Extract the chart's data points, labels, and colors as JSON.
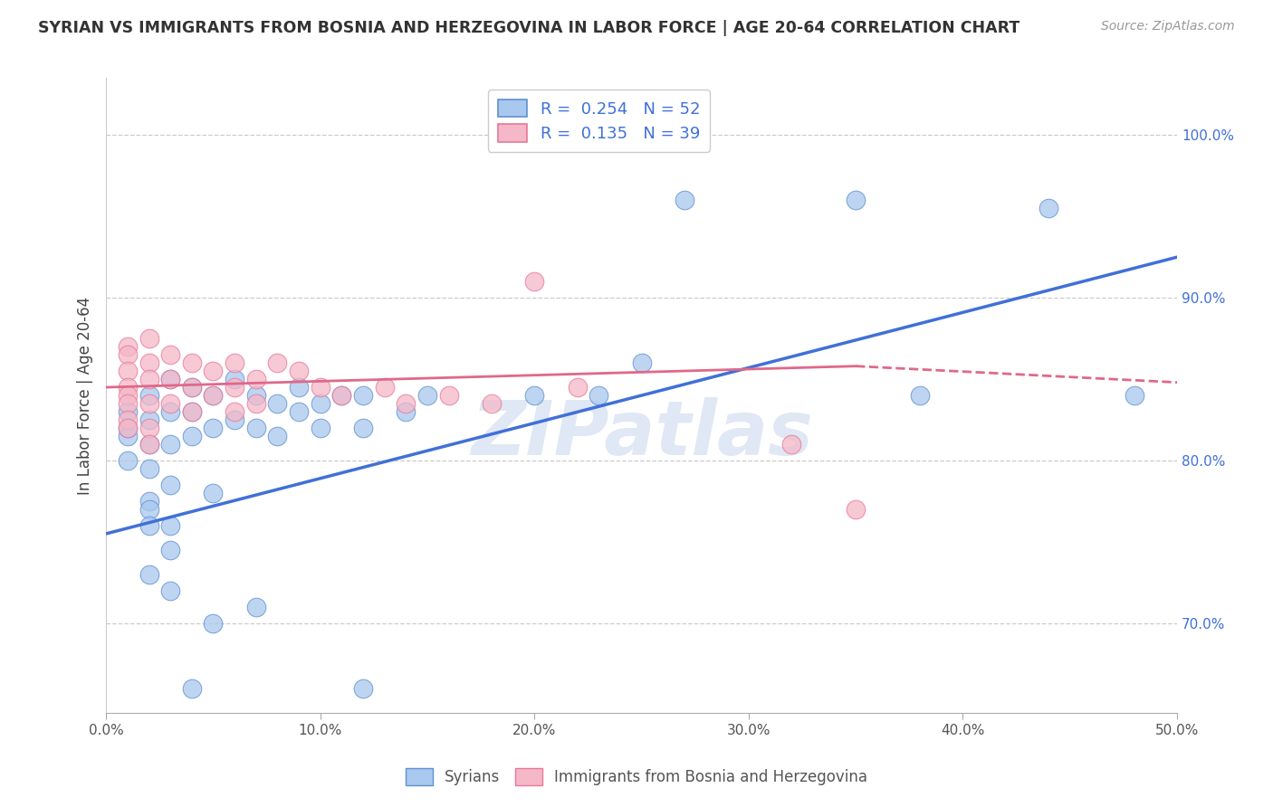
{
  "title": "SYRIAN VS IMMIGRANTS FROM BOSNIA AND HERZEGOVINA IN LABOR FORCE | AGE 20-64 CORRELATION CHART",
  "source": "Source: ZipAtlas.com",
  "ylabel": "In Labor Force | Age 20-64",
  "xlim": [
    0.0,
    0.5
  ],
  "ylim": [
    0.645,
    1.035
  ],
  "yticks": [
    0.7,
    0.8,
    0.9,
    1.0
  ],
  "ytick_labels": [
    "70.0%",
    "80.0%",
    "90.0%",
    "100.0%"
  ],
  "xticks": [
    0.0,
    0.1,
    0.2,
    0.3,
    0.4,
    0.5
  ],
  "xtick_labels": [
    "0.0%",
    "10.0%",
    "20.0%",
    "30.0%",
    "40.0%",
    "50.0%"
  ],
  "blue_R": 0.254,
  "blue_N": 52,
  "pink_R": 0.135,
  "pink_N": 39,
  "blue_fill": "#a8c8ee",
  "pink_fill": "#f4b8c8",
  "blue_edge": "#6090d0",
  "pink_edge": "#e87898",
  "blue_line": "#4070d8",
  "pink_line": "#e06888",
  "watermark": "ZIPatlas",
  "blue_scatter": [
    [
      0.01,
      0.815
    ],
    [
      0.01,
      0.82
    ],
    [
      0.01,
      0.8
    ],
    [
      0.01,
      0.83
    ],
    [
      0.02,
      0.84
    ],
    [
      0.02,
      0.825
    ],
    [
      0.02,
      0.81
    ],
    [
      0.02,
      0.795
    ],
    [
      0.02,
      0.775
    ],
    [
      0.02,
      0.77
    ],
    [
      0.02,
      0.76
    ],
    [
      0.03,
      0.85
    ],
    [
      0.03,
      0.83
    ],
    [
      0.03,
      0.81
    ],
    [
      0.03,
      0.785
    ],
    [
      0.03,
      0.76
    ],
    [
      0.03,
      0.745
    ],
    [
      0.04,
      0.845
    ],
    [
      0.04,
      0.83
    ],
    [
      0.04,
      0.815
    ],
    [
      0.05,
      0.84
    ],
    [
      0.05,
      0.82
    ],
    [
      0.05,
      0.78
    ],
    [
      0.06,
      0.85
    ],
    [
      0.06,
      0.825
    ],
    [
      0.07,
      0.84
    ],
    [
      0.07,
      0.82
    ],
    [
      0.08,
      0.835
    ],
    [
      0.08,
      0.815
    ],
    [
      0.09,
      0.845
    ],
    [
      0.09,
      0.83
    ],
    [
      0.1,
      0.835
    ],
    [
      0.1,
      0.82
    ],
    [
      0.11,
      0.84
    ],
    [
      0.12,
      0.84
    ],
    [
      0.12,
      0.82
    ],
    [
      0.14,
      0.83
    ],
    [
      0.15,
      0.84
    ],
    [
      0.2,
      0.84
    ],
    [
      0.23,
      0.84
    ],
    [
      0.25,
      0.86
    ],
    [
      0.27,
      0.96
    ],
    [
      0.35,
      0.96
    ],
    [
      0.38,
      0.84
    ],
    [
      0.44,
      0.955
    ],
    [
      0.48,
      0.84
    ],
    [
      0.04,
      0.66
    ],
    [
      0.12,
      0.66
    ],
    [
      0.02,
      0.73
    ],
    [
      0.03,
      0.72
    ],
    [
      0.05,
      0.7
    ],
    [
      0.07,
      0.71
    ]
  ],
  "pink_scatter": [
    [
      0.01,
      0.87
    ],
    [
      0.01,
      0.865
    ],
    [
      0.01,
      0.855
    ],
    [
      0.01,
      0.845
    ],
    [
      0.01,
      0.84
    ],
    [
      0.01,
      0.835
    ],
    [
      0.01,
      0.825
    ],
    [
      0.01,
      0.82
    ],
    [
      0.02,
      0.875
    ],
    [
      0.02,
      0.86
    ],
    [
      0.02,
      0.85
    ],
    [
      0.02,
      0.835
    ],
    [
      0.02,
      0.82
    ],
    [
      0.02,
      0.81
    ],
    [
      0.03,
      0.865
    ],
    [
      0.03,
      0.85
    ],
    [
      0.03,
      0.835
    ],
    [
      0.04,
      0.86
    ],
    [
      0.04,
      0.845
    ],
    [
      0.04,
      0.83
    ],
    [
      0.05,
      0.855
    ],
    [
      0.05,
      0.84
    ],
    [
      0.06,
      0.86
    ],
    [
      0.06,
      0.845
    ],
    [
      0.06,
      0.83
    ],
    [
      0.07,
      0.85
    ],
    [
      0.07,
      0.835
    ],
    [
      0.08,
      0.86
    ],
    [
      0.09,
      0.855
    ],
    [
      0.1,
      0.845
    ],
    [
      0.11,
      0.84
    ],
    [
      0.13,
      0.845
    ],
    [
      0.14,
      0.835
    ],
    [
      0.16,
      0.84
    ],
    [
      0.18,
      0.835
    ],
    [
      0.2,
      0.91
    ],
    [
      0.22,
      0.845
    ],
    [
      0.32,
      0.81
    ],
    [
      0.35,
      0.77
    ]
  ]
}
